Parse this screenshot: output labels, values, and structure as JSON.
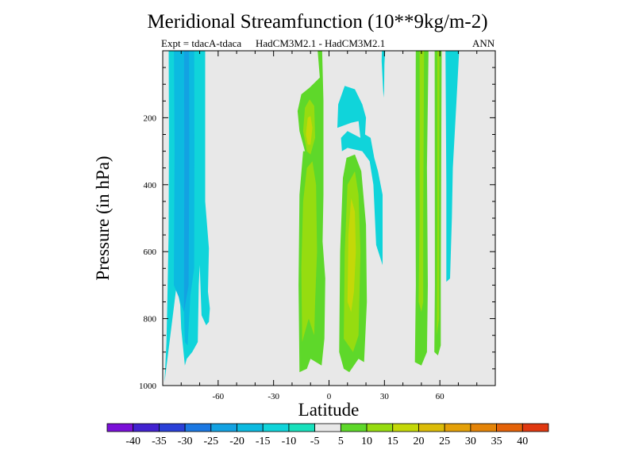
{
  "header": {
    "title": "Meridional Streamfunction (10**9kg/m-2)",
    "expt": "Expt = tdacA-tdaca",
    "models": "HadCM3M2.1 - HadCM3M2.1",
    "season": "ANN"
  },
  "chart_data": {
    "type": "heatmap",
    "title": "Meridional Streamfunction (10**9kg/m-2)",
    "xlabel": "Latitude",
    "ylabel": "Pressure (in hPa)",
    "xlim": [
      -90,
      90
    ],
    "ylim": [
      1000,
      0
    ],
    "x_ticks": [
      {
        "value": -60,
        "label": "-60"
      },
      {
        "value": -30,
        "label": "-30"
      },
      {
        "value": 0,
        "label": "0"
      },
      {
        "value": 30,
        "label": "30"
      },
      {
        "value": 60,
        "label": "60"
      }
    ],
    "y_ticks": [
      {
        "value": 200,
        "label": "200"
      },
      {
        "value": 400,
        "label": "400"
      },
      {
        "value": 600,
        "label": "600"
      },
      {
        "value": 800,
        "label": "800"
      },
      {
        "value": 1000,
        "label": "1000"
      }
    ],
    "background_color": "#e8e8e8",
    "colorbar": {
      "colors": [
        "#7a10d8",
        "#4222d0",
        "#2a40d8",
        "#1b78e2",
        "#13a2e2",
        "#0cbae0",
        "#10d4da",
        "#18e0bc",
        "#e8e8e8",
        "#5ed82a",
        "#96dc10",
        "#c4d808",
        "#dcbc08",
        "#e4a008",
        "#e48408",
        "#e46208",
        "#e03810"
      ],
      "labels": [
        "-40",
        "-35",
        "-30",
        "-25",
        "-20",
        "-15",
        "-10",
        "-5",
        "5",
        "10",
        "15",
        "20",
        "25",
        "30",
        "35",
        "40"
      ]
    },
    "regions": [
      {
        "level": "-10",
        "color": "#10d4da",
        "polygon": [
          [
            -89,
            990
          ],
          [
            -88,
            870
          ],
          [
            -87.5,
            750
          ],
          [
            -86.8,
            550
          ],
          [
            -86.6,
            250
          ],
          [
            -86.8,
            -60
          ],
          [
            -67,
            -60
          ],
          [
            -67,
            450
          ],
          [
            -65,
            590
          ],
          [
            -65.5,
            720
          ],
          [
            -64.5,
            770
          ],
          [
            -65,
            810
          ],
          [
            -66.5,
            820
          ],
          [
            -69,
            790
          ],
          [
            -70,
            640
          ],
          [
            -70.5,
            700
          ],
          [
            -71,
            870
          ],
          [
            -74,
            900
          ],
          [
            -77,
            920
          ],
          [
            -78,
            940
          ],
          [
            -80,
            830
          ],
          [
            -80.5,
            760
          ],
          [
            -81.5,
            730
          ],
          [
            -82.5,
            700
          ]
        ]
      },
      {
        "level": "-15",
        "color": "#0cbae0",
        "polygon": [
          [
            -84,
            700
          ],
          [
            -83.6,
            300
          ],
          [
            -84,
            -60
          ],
          [
            -73,
            -60
          ],
          [
            -72.8,
            300
          ],
          [
            -73,
            650
          ],
          [
            -75,
            730
          ],
          [
            -76.5,
            880
          ],
          [
            -78,
            870
          ],
          [
            -78.5,
            780
          ],
          [
            -80,
            760
          ],
          [
            -81,
            740
          ]
        ]
      },
      {
        "level": "-20",
        "color": "#13a2e2",
        "polygon": [
          [
            -78.5,
            780
          ],
          [
            -78.3,
            300
          ],
          [
            -78.5,
            -60
          ],
          [
            -75.8,
            -60
          ],
          [
            -75.6,
            300
          ],
          [
            -76,
            700
          ]
        ]
      },
      {
        "level": "5",
        "color": "#5ed82a",
        "polygon": [
          [
            -16,
            960
          ],
          [
            -16.5,
            700
          ],
          [
            -16,
            430
          ],
          [
            -14,
            300
          ],
          [
            -13,
            300
          ],
          [
            -16,
            240
          ],
          [
            -17,
            180
          ],
          [
            -15,
            130
          ],
          [
            -10.5,
            110
          ],
          [
            -5,
            80
          ],
          [
            -7,
            -60
          ],
          [
            -4,
            -60
          ],
          [
            -3,
            150
          ],
          [
            -3,
            430
          ],
          [
            -3.5,
            570
          ],
          [
            -2,
            680
          ],
          [
            -2.5,
            860
          ],
          [
            -4,
            940
          ],
          [
            -10,
            920
          ],
          [
            -12,
            950
          ]
        ]
      },
      {
        "level": "10",
        "color": "#96dc10",
        "polygon": [
          [
            -14.5,
            870
          ],
          [
            -15,
            650
          ],
          [
            -14,
            450
          ],
          [
            -12,
            350
          ],
          [
            -9,
            330
          ],
          [
            -7,
            400
          ],
          [
            -6.5,
            600
          ],
          [
            -7.5,
            750
          ],
          [
            -8,
            850
          ],
          [
            -11,
            800
          ]
        ]
      },
      {
        "level": "10",
        "color": "#96dc10",
        "polygon": [
          [
            -14,
            240
          ],
          [
            -13,
            170
          ],
          [
            -10.5,
            145
          ],
          [
            -8,
            165
          ],
          [
            -7.5,
            260
          ],
          [
            -10,
            310
          ],
          [
            -12,
            300
          ]
        ]
      },
      {
        "level": "15",
        "color": "#c4d808",
        "polygon": [
          [
            -12.5,
            250
          ],
          [
            -11.5,
            200
          ],
          [
            -10,
            195
          ],
          [
            -9,
            230
          ],
          [
            -10,
            280
          ],
          [
            -11.5,
            280
          ]
        ]
      },
      {
        "level": "-10",
        "color": "#10d4da",
        "polygon": [
          [
            4.5,
            230
          ],
          [
            5,
            160
          ],
          [
            8.5,
            105
          ],
          [
            14,
            115
          ],
          [
            18,
            160
          ],
          [
            20,
            200
          ],
          [
            19.5,
            250
          ],
          [
            22.5,
            260
          ],
          [
            24.5,
            320
          ],
          [
            26.5,
            360
          ],
          [
            29,
            430
          ],
          [
            29,
            640
          ],
          [
            25.5,
            580
          ],
          [
            24,
            400
          ],
          [
            22,
            330
          ],
          [
            18,
            300
          ],
          [
            10,
            290
          ],
          [
            7,
            300
          ],
          [
            6.5,
            260
          ],
          [
            10,
            240
          ],
          [
            17,
            260
          ],
          [
            16,
            210
          ],
          [
            12,
            215
          ]
        ]
      },
      {
        "level": "-10",
        "color": "#10d4da",
        "polygon": [
          [
            28.5,
            30
          ],
          [
            29,
            -60
          ],
          [
            31,
            -60
          ],
          [
            30,
            40
          ],
          [
            29.8,
            120
          ],
          [
            29.5,
            140
          ]
        ]
      },
      {
        "level": "5",
        "color": "#5ed82a",
        "polygon": [
          [
            5.5,
            900
          ],
          [
            6,
            600
          ],
          [
            7.5,
            380
          ],
          [
            9.5,
            320
          ],
          [
            14,
            310
          ],
          [
            17.5,
            360
          ],
          [
            20,
            520
          ],
          [
            20.5,
            750
          ],
          [
            19,
            930
          ],
          [
            16,
            920
          ],
          [
            11,
            960
          ],
          [
            8,
            950
          ]
        ]
      },
      {
        "level": "10",
        "color": "#96dc10",
        "polygon": [
          [
            8,
            860
          ],
          [
            8.5,
            600
          ],
          [
            10,
            400
          ],
          [
            14,
            360
          ],
          [
            16,
            430
          ],
          [
            17,
            600
          ],
          [
            16,
            850
          ],
          [
            13,
            900
          ]
        ]
      },
      {
        "level": "15",
        "color": "#c4d808",
        "polygon": [
          [
            10,
            750
          ],
          [
            10.5,
            550
          ],
          [
            12,
            440
          ],
          [
            14,
            480
          ],
          [
            14.5,
            600
          ],
          [
            13.5,
            720
          ],
          [
            12,
            780
          ]
        ]
      },
      {
        "level": "5",
        "color": "#5ed82a",
        "polygon": [
          [
            46.5,
            930
          ],
          [
            47,
            700
          ],
          [
            46.8,
            350
          ],
          [
            47,
            -60
          ],
          [
            54,
            -60
          ],
          [
            53,
            350
          ],
          [
            53.5,
            700
          ],
          [
            53,
            900
          ],
          [
            50,
            940
          ]
        ]
      },
      {
        "level": "10",
        "color": "#96dc10",
        "polygon": [
          [
            48.5,
            750
          ],
          [
            49,
            500
          ],
          [
            49,
            -60
          ],
          [
            51.5,
            -60
          ],
          [
            51,
            500
          ],
          [
            51,
            750
          ],
          [
            50,
            780
          ]
        ]
      },
      {
        "level": "5",
        "color": "#5ed82a",
        "polygon": [
          [
            57,
            900
          ],
          [
            57.3,
            700
          ],
          [
            57.2,
            -60
          ],
          [
            61,
            -60
          ],
          [
            60.5,
            700
          ],
          [
            60.5,
            880
          ],
          [
            59,
            910
          ]
        ]
      },
      {
        "level": "10",
        "color": "#96dc10",
        "polygon": [
          [
            58.3,
            850
          ],
          [
            58.6,
            500
          ],
          [
            58.6,
            -60
          ],
          [
            59.8,
            -60
          ],
          [
            59.6,
            500
          ],
          [
            59.6,
            800
          ]
        ]
      },
      {
        "level": "-10",
        "color": "#10d4da",
        "polygon": [
          [
            63.5,
            690
          ],
          [
            63.5,
            400
          ],
          [
            63,
            -60
          ],
          [
            71,
            -60
          ],
          [
            69,
            150
          ],
          [
            67,
            350
          ],
          [
            66.5,
            500
          ],
          [
            65.5,
            680
          ]
        ]
      }
    ]
  }
}
